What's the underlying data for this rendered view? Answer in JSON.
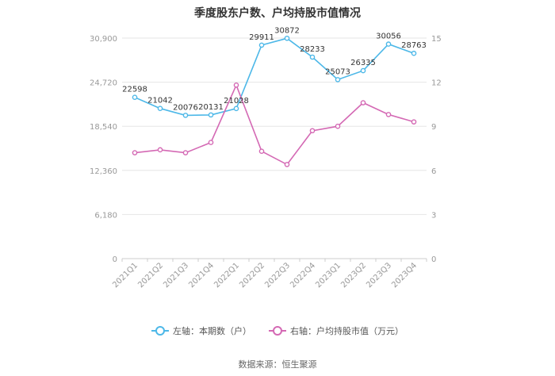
{
  "chart_data": {
    "type": "line",
    "title": "季度股东户数、户均持股市值情况",
    "categories": [
      "2021Q1",
      "2021Q2",
      "2021Q3",
      "2021Q4",
      "2022Q1",
      "2022Q2",
      "2022Q3",
      "2022Q4",
      "2023Q1",
      "2023Q2",
      "2023Q3",
      "2023Q4"
    ],
    "left_axis": {
      "ticks": [
        "0",
        "6,180",
        "12,360",
        "18,540",
        "24,720",
        "30,900"
      ],
      "ylim": [
        0,
        30900
      ]
    },
    "right_axis": {
      "ticks": [
        "0",
        "3",
        "6",
        "9",
        "12",
        "15"
      ],
      "ylim": [
        0,
        15
      ]
    },
    "series": [
      {
        "name": "左轴：本期数（户）",
        "axis": "left",
        "color": "#4db8e8",
        "values": [
          22598,
          21042,
          20076,
          20131,
          21028,
          29911,
          30872,
          28233,
          25073,
          26335,
          30056,
          28763
        ],
        "labels": [
          "22598",
          "21042",
          "20076",
          "20131",
          "21028",
          "29911",
          "30872",
          "28233",
          "25073",
          "26335",
          "30056",
          "28763"
        ]
      },
      {
        "name": "右轴：户均持股市值（万元）",
        "axis": "right",
        "color": "#d469b4",
        "values": [
          7.2,
          7.4,
          7.2,
          7.9,
          11.8,
          7.3,
          6.4,
          8.7,
          9.0,
          10.6,
          9.8,
          9.3
        ]
      }
    ],
    "grid": true,
    "legend_position": "bottom"
  },
  "source_text": "数据来源：恒生聚源"
}
